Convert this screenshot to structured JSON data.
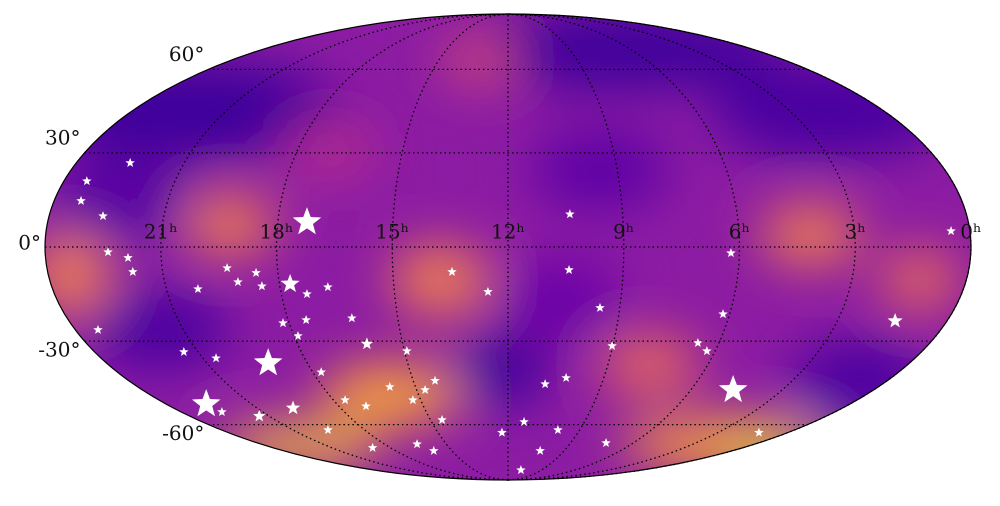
{
  "chart_data": {
    "type": "scatter",
    "projection": "mollweide",
    "color": "#ffffff",
    "grid": true,
    "xlim": [
      24,
      0
    ],
    "ylim": [
      -90,
      90
    ],
    "xticks": [
      {
        "value": 0,
        "label": "0ʰ"
      },
      {
        "value": 3,
        "label": "3ʰ"
      },
      {
        "value": 6,
        "label": "6ʰ"
      },
      {
        "value": 9,
        "label": "9ʰ"
      },
      {
        "value": 12,
        "label": "12ʰ"
      },
      {
        "value": 15,
        "label": "15ʰ"
      },
      {
        "value": 18,
        "label": "18ʰ"
      },
      {
        "value": 21,
        "label": "21ʰ"
      }
    ],
    "yticks": [
      {
        "value": -60,
        "label": "-60°"
      },
      {
        "value": -30,
        "label": "-30°"
      },
      {
        "value": 0,
        "label": "0°"
      },
      {
        "value": 30,
        "label": "30°"
      },
      {
        "value": 60,
        "label": "60°"
      }
    ],
    "x": [
      22.5,
      23.38,
      23.29,
      22.59,
      22.37,
      21.86,
      21.78,
      23.37,
      21.41,
      20.61,
      19.31,
      19.08,
      20.17,
      18.57,
      18.47,
      17.72,
      17.24,
      17.32,
      16.74,
      18.17,
      17.51,
      16.25,
      19.17,
      17.89,
      16.02,
      14.93,
      17.74,
      22.59,
      22.5,
      21.37,
      19.71,
      19.54,
      18.92,
      16.42,
      15.97,
      17.6,
      17.04,
      15.83,
      15.27,
      14.72,
      14.31,
      14.55,
      13.46,
      12.53,
      10.38,
      10.41,
      9.53,
      9.02,
      10.81,
      10.18,
      11.37,
      12.26,
      10.28,
      9.91,
      10.84,
      7.3,
      6.22,
      6.18,
      6.6,
      6.24,
      4.61,
      1.24,
      1.42,
      0.49
    ],
    "y": [
      26.7,
      20.8,
      14.5,
      9.7,
      -1.6,
      -3.4,
      -7.8,
      -26.3,
      -33.6,
      -35.7,
      -6.6,
      -11.0,
      -13.2,
      -8.1,
      -12.3,
      -11.6,
      7.8,
      -14.8,
      -12.6,
      -24.1,
      -23.1,
      -22.5,
      -37.4,
      -28.3,
      -30.9,
      -33.3,
      -40.5,
      -52.0,
      -55.0,
      -56.6,
      -53.5,
      -62.2,
      -70.0,
      -68.3,
      -71.4,
      -50.5,
      -52.8,
      -45.7,
      -50.5,
      -46.8,
      -43.5,
      -58.1,
      -7.8,
      -14.1,
      10.3,
      -7.2,
      -19.2,
      -31.6,
      -44.7,
      -42.5,
      -58.9,
      -63.3,
      -71.4,
      -62.2,
      -81.7,
      -67.8,
      -1.9,
      -21.2,
      -30.6,
      -33.3,
      -46.8,
      -63.3,
      -23.4,
      5.0
    ],
    "sizes": [
      1,
      1,
      1,
      1,
      1,
      1,
      1,
      1,
      1,
      1,
      1,
      1,
      1,
      1,
      1,
      2,
      3,
      1,
      1,
      1,
      1,
      1,
      3,
      1,
      1.3,
      1,
      1,
      3,
      1,
      1.3,
      1.5,
      1,
      1,
      1,
      1,
      1,
      1,
      1,
      1,
      1,
      1,
      1,
      1,
      1,
      1,
      1,
      1,
      1,
      1,
      1,
      1,
      1,
      1,
      1,
      1,
      1,
      1,
      1,
      1,
      1,
      3,
      1,
      1.6,
      1
    ]
  }
}
